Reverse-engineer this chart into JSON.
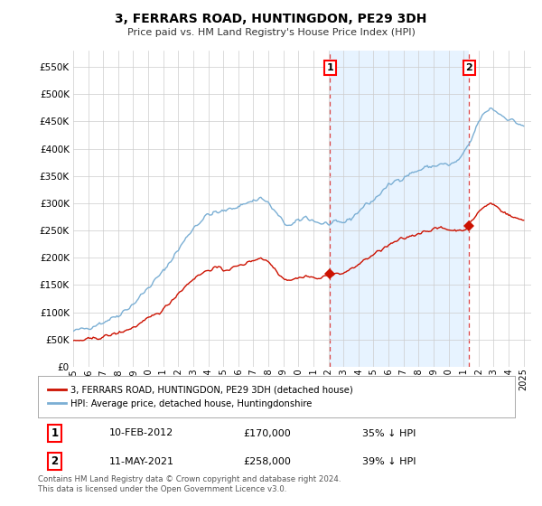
{
  "title": "3, FERRARS ROAD, HUNTINGDON, PE29 3DH",
  "subtitle": "Price paid vs. HM Land Registry's House Price Index (HPI)",
  "ytick_values": [
    0,
    50000,
    100000,
    150000,
    200000,
    250000,
    300000,
    350000,
    400000,
    450000,
    500000,
    550000
  ],
  "ylim": [
    0,
    580000
  ],
  "xlim_start": 1995.0,
  "xlim_end": 2025.5,
  "xticks": [
    1995,
    1996,
    1997,
    1998,
    1999,
    2000,
    2001,
    2002,
    2003,
    2004,
    2005,
    2006,
    2007,
    2008,
    2009,
    2010,
    2011,
    2012,
    2013,
    2014,
    2015,
    2016,
    2017,
    2018,
    2019,
    2020,
    2021,
    2022,
    2023,
    2024,
    2025
  ],
  "hpi_color": "#7bafd4",
  "price_color": "#cc1100",
  "vline_color": "#dd4444",
  "shade_color": "#ddeeff",
  "marker1_x": 2012.11,
  "marker1_y": 170000,
  "marker2_x": 2021.37,
  "marker2_y": 258000,
  "annotation1_label": "1",
  "annotation2_label": "2",
  "legend_label1": "3, FERRARS ROAD, HUNTINGDON, PE29 3DH (detached house)",
  "legend_label2": "HPI: Average price, detached house, Huntingdonshire",
  "table_row1": [
    "1",
    "10-FEB-2012",
    "£170,000",
    "35% ↓ HPI"
  ],
  "table_row2": [
    "2",
    "11-MAY-2021",
    "£258,000",
    "39% ↓ HPI"
  ],
  "footer": "Contains HM Land Registry data © Crown copyright and database right 2024.\nThis data is licensed under the Open Government Licence v3.0.",
  "background_color": "#ffffff",
  "grid_color": "#cccccc"
}
